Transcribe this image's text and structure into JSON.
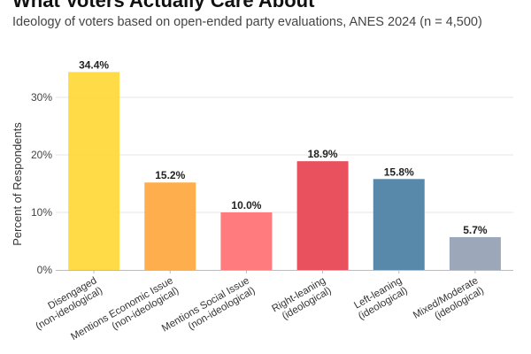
{
  "chart_data": {
    "type": "bar",
    "title": "What Voters Actually Care About",
    "subtitle": "Ideology of voters based on open-ended party evaluations, ANES 2024 (n = 4,500)",
    "xlabel": "",
    "ylabel": "Percent of Respondents",
    "ylim": [
      0,
      35
    ],
    "yticks": [
      0,
      10,
      20,
      30
    ],
    "ytick_labels": [
      "0%",
      "10%",
      "20%",
      "30%"
    ],
    "grid": true,
    "categories": [
      [
        "Disengaged",
        "(non-ideological)"
      ],
      [
        "Mentions Economic Issue",
        "(non-ideological)"
      ],
      [
        "Mentions Social Issue",
        "(non-ideological)"
      ],
      [
        "Right-leaning",
        "(ideological)"
      ],
      [
        "Left-leaning",
        "(ideological)"
      ],
      [
        "Mixed/Moderate",
        "(ideological)"
      ]
    ],
    "values": [
      34.4,
      15.2,
      10.0,
      18.9,
      15.8,
      5.7
    ],
    "data_labels": [
      "34.4%",
      "15.2%",
      "10.0%",
      "18.9%",
      "15.8%",
      "5.7%"
    ],
    "colors": [
      "#FFD93D",
      "#FFAA45",
      "#FF7477",
      "#E84855",
      "#4F83A6",
      "#97A3B6"
    ]
  }
}
